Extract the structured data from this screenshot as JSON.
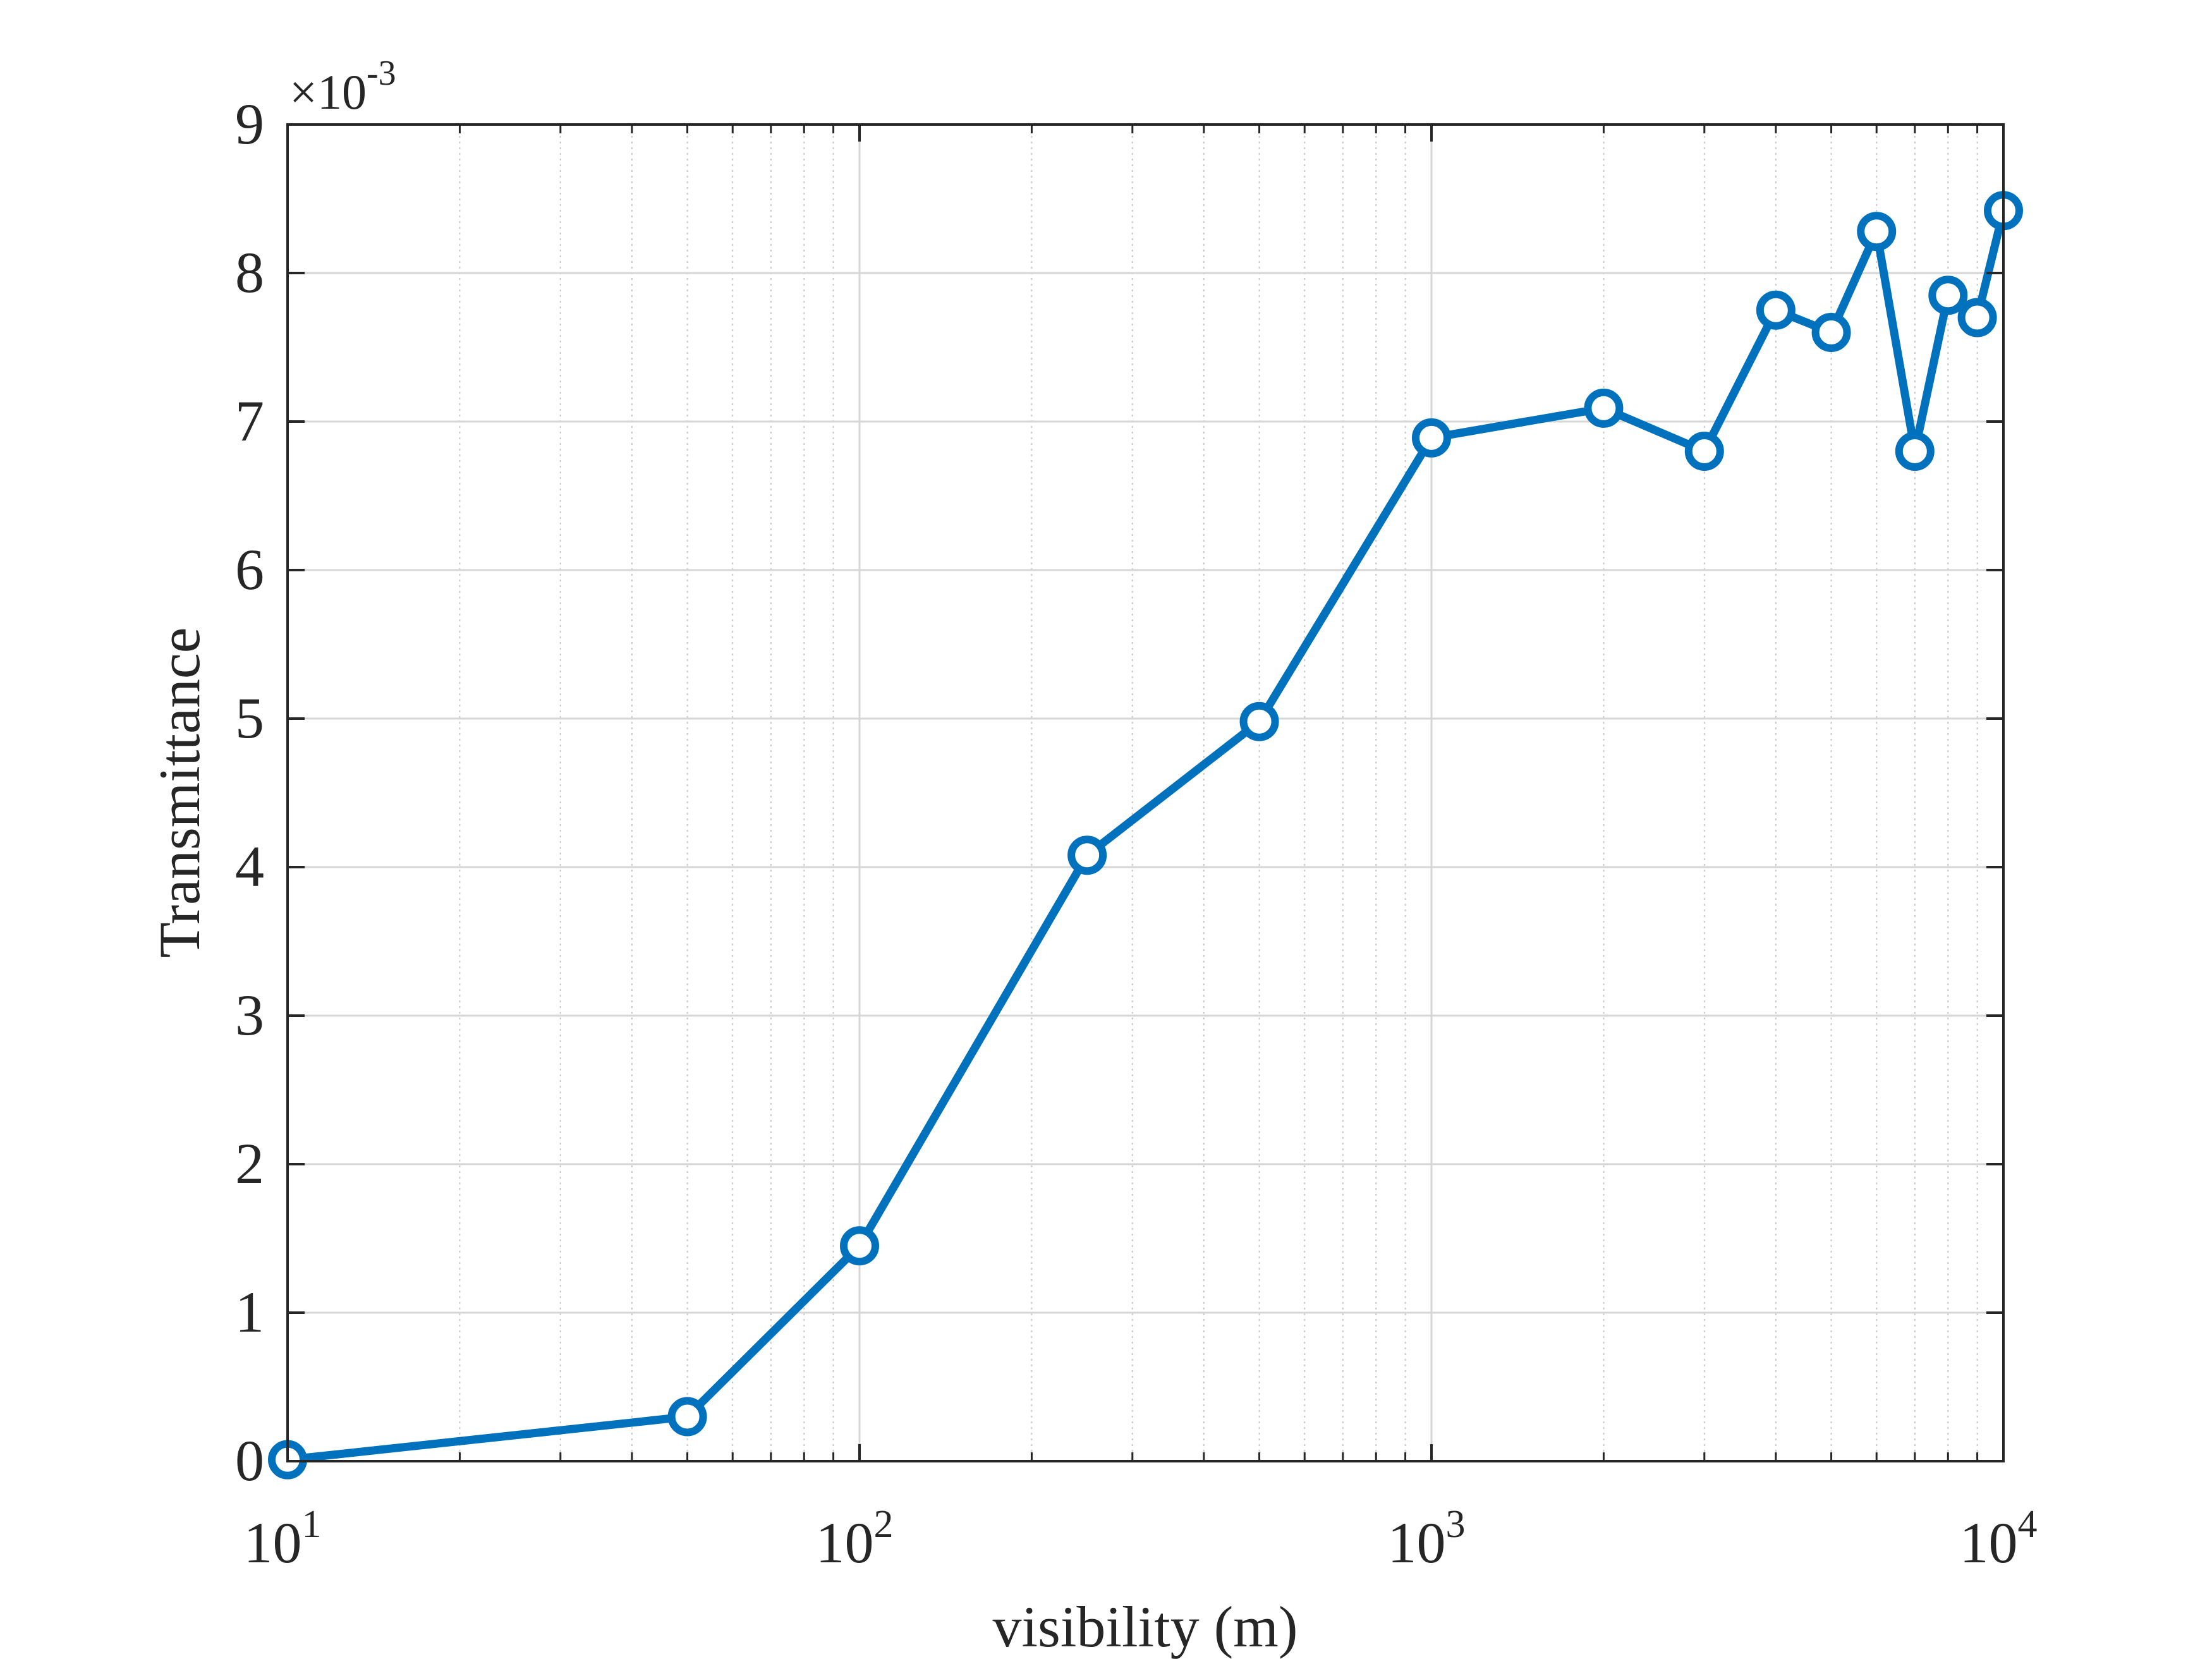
{
  "chart_data": {
    "type": "line",
    "xlabel": "visibility (m)",
    "ylabel": "Transmittance",
    "x_scale": "log",
    "xlim": [
      10,
      10000
    ],
    "ylim": [
      0,
      0.009
    ],
    "y_exponent_label": "×10",
    "y_exponent_power": "-3",
    "x_ticks": [
      {
        "value": 10,
        "base": "10",
        "exp": "1"
      },
      {
        "value": 100,
        "base": "10",
        "exp": "2"
      },
      {
        "value": 1000,
        "base": "10",
        "exp": "3"
      },
      {
        "value": 10000,
        "base": "10",
        "exp": "4"
      }
    ],
    "y_ticks": [
      {
        "value": 0,
        "label": "0"
      },
      {
        "value": 0.001,
        "label": "1"
      },
      {
        "value": 0.002,
        "label": "2"
      },
      {
        "value": 0.003,
        "label": "3"
      },
      {
        "value": 0.004,
        "label": "4"
      },
      {
        "value": 0.005,
        "label": "5"
      },
      {
        "value": 0.006,
        "label": "6"
      },
      {
        "value": 0.007,
        "label": "7"
      },
      {
        "value": 0.008,
        "label": "8"
      },
      {
        "value": 0.009,
        "label": "9"
      }
    ],
    "grid": true,
    "minor_grid": true,
    "legend": "none",
    "series": [
      {
        "color": "#0072BD",
        "marker": "circle",
        "x": [
          10,
          50,
          100,
          250,
          500,
          1000,
          2000,
          3000,
          4000,
          5000,
          6000,
          7000,
          8000,
          9000,
          10000
        ],
        "y": [
          1e-05,
          0.0003,
          0.00145,
          0.00408,
          0.00498,
          0.00689,
          0.00709,
          0.0068,
          0.00775,
          0.0076,
          0.00828,
          0.0068,
          0.00785,
          0.0077,
          0.00842
        ]
      }
    ]
  }
}
